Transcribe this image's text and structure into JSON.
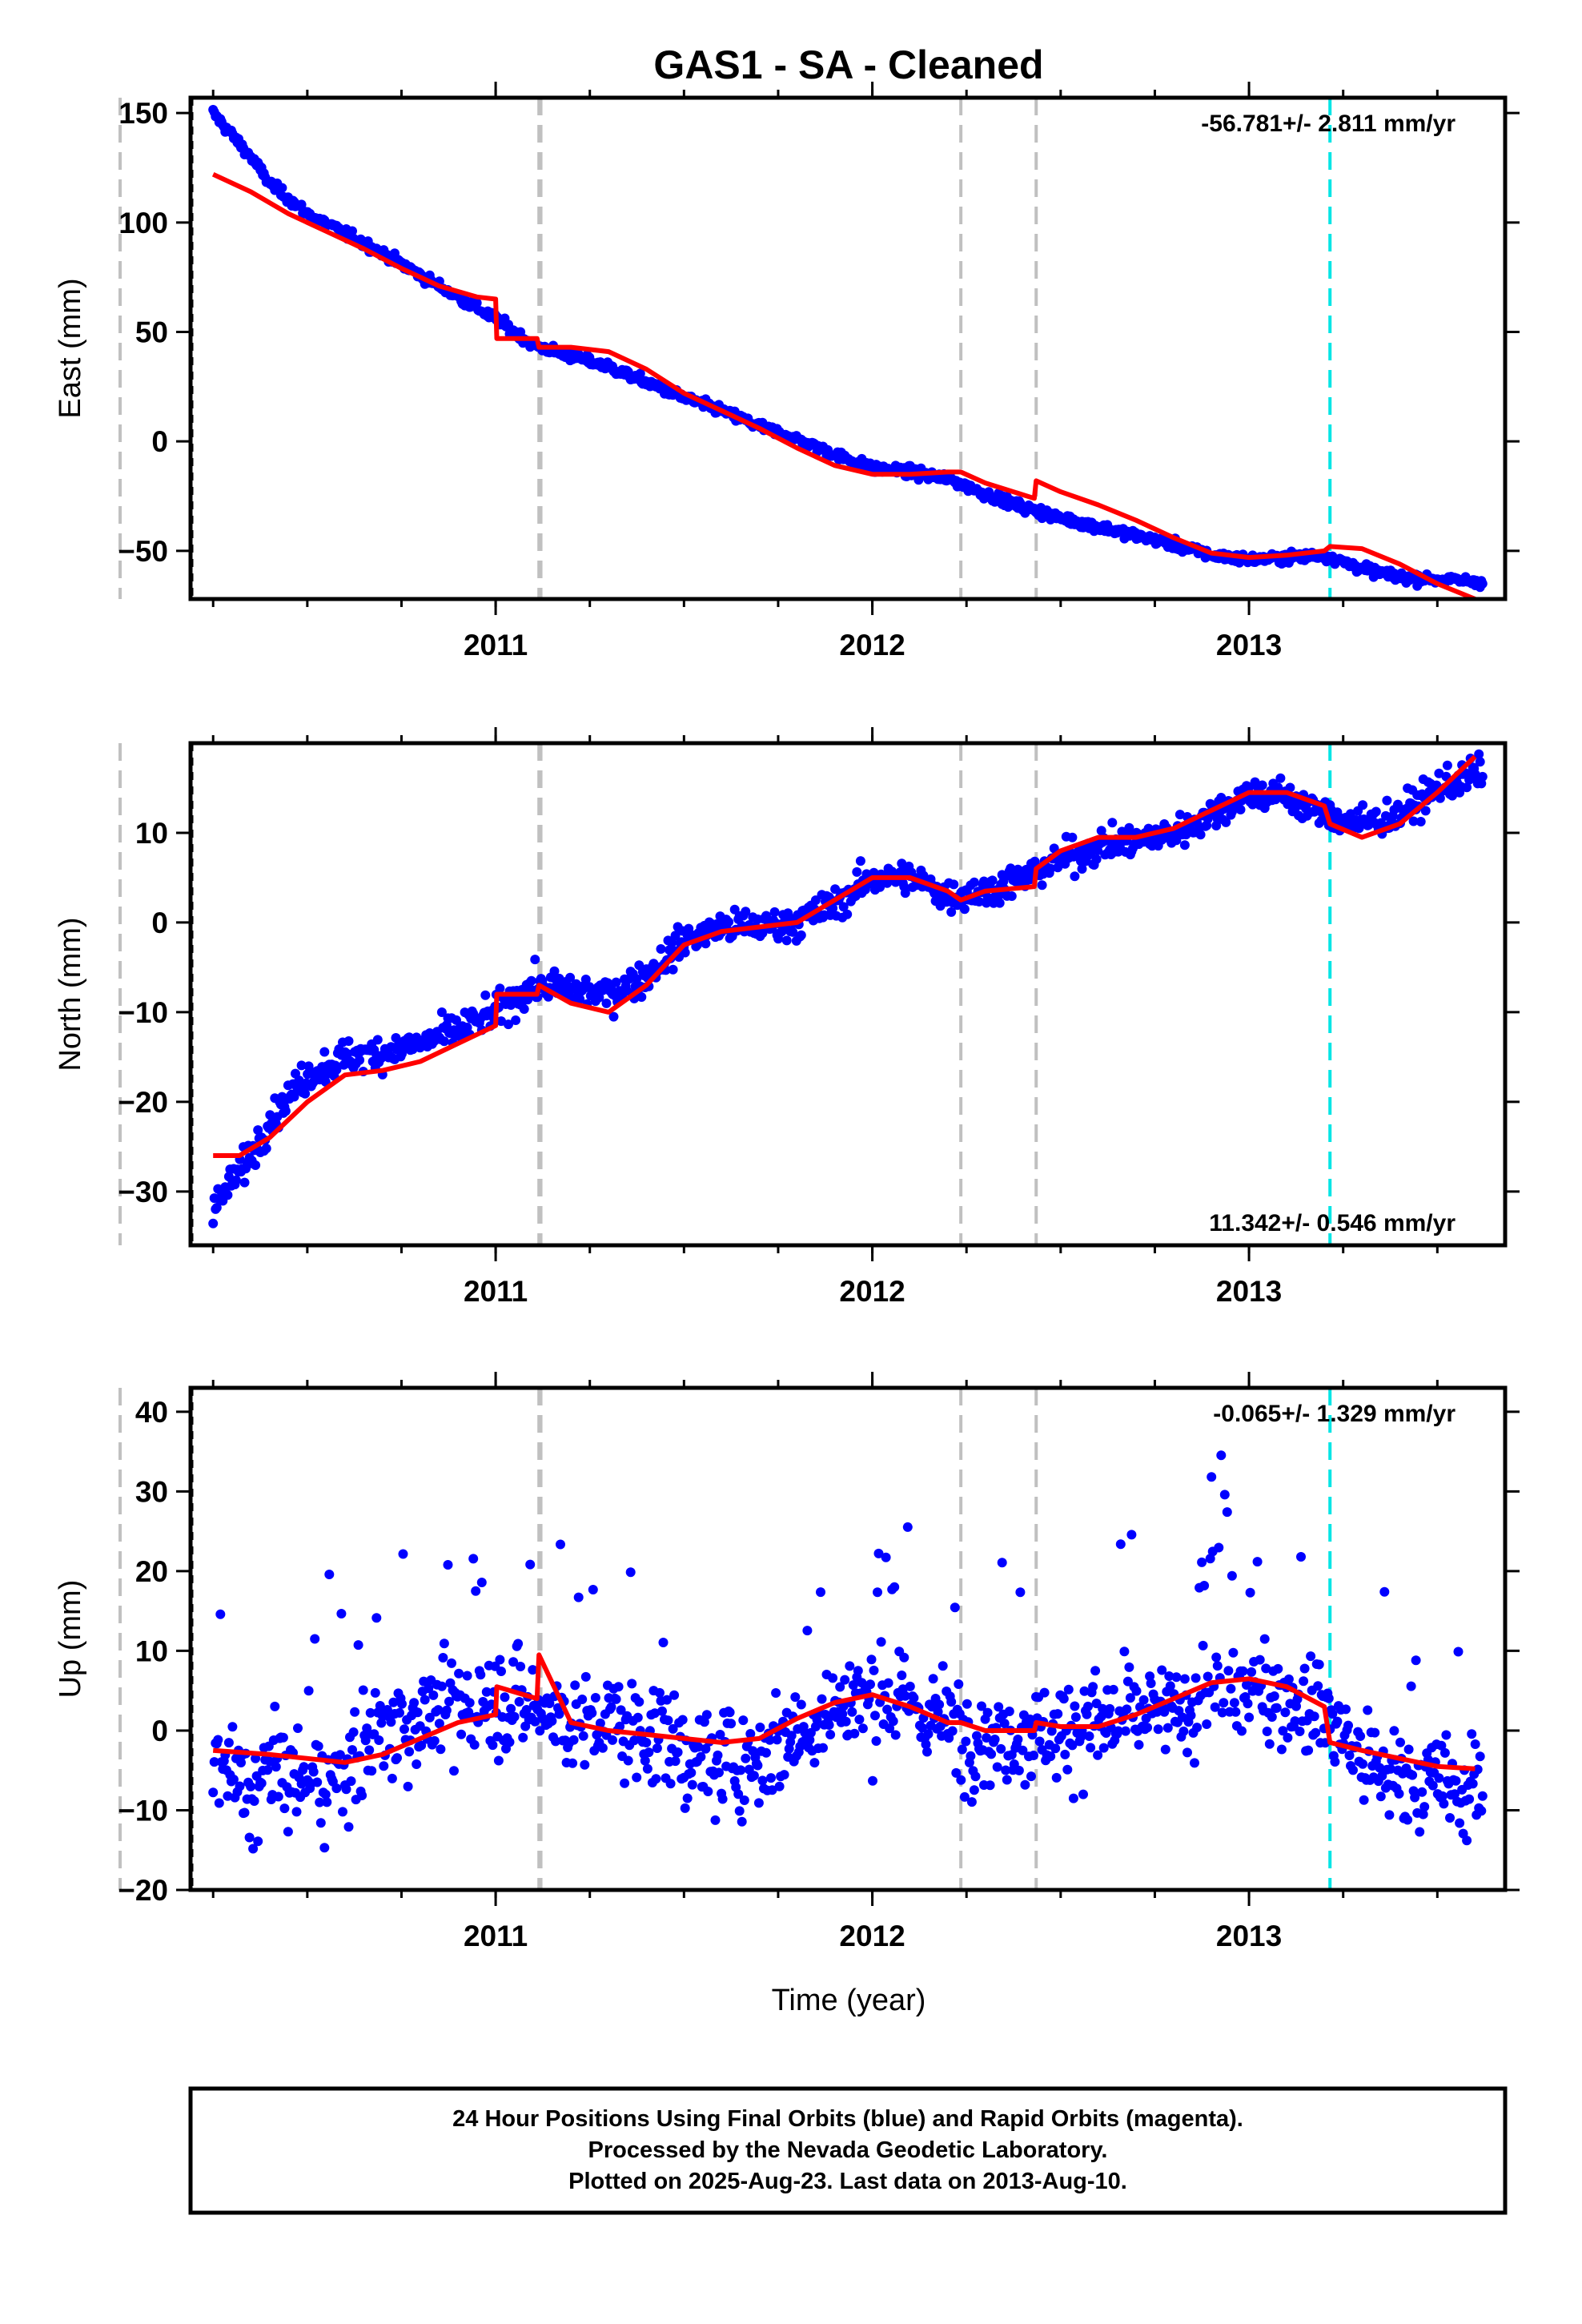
{
  "title": "GAS1  - SA - Cleaned",
  "xlabel": "Time (year)",
  "footer": [
    "24 Hour Positions Using Final Orbits (blue) and Rapid Orbits (magenta).",
    "Processed by the Nevada Geodetic Laboratory.",
    "Plotted on 2025-Aug-23. Last data on 2013-Aug-10."
  ],
  "colors": {
    "points": "#0000ff",
    "model": "#ff0000",
    "steps": "#c0c0c0",
    "step_special": "#00e5e5"
  },
  "step_epochs": [
    2010.003,
    2011.115,
    2012.235,
    2012.435
  ],
  "special_step_epoch": 2013.215,
  "chart_data": [
    {
      "type": "scatter",
      "ylabel": "East (mm)",
      "rate": "-56.781+/- 2.811 mm/yr",
      "xlim": [
        2010.19,
        2013.68
      ],
      "ylim": [
        -72,
        157
      ],
      "xticks": [
        2011,
        2012,
        2013
      ],
      "yticks": [
        150,
        100,
        50,
        0,
        -50
      ],
      "series": [
        {
          "x": [
            2010.25,
            2010.3,
            2010.35,
            2010.4,
            2010.5,
            2010.6,
            2010.7,
            2010.8,
            2010.9,
            2011.0,
            2011.05,
            2011.1,
            2011.2,
            2011.3,
            2011.4,
            2011.5,
            2011.6,
            2011.7,
            2011.8,
            2011.9,
            2012.0,
            2012.1,
            2012.2,
            2012.3,
            2012.4,
            2012.5,
            2012.6,
            2012.7,
            2012.8,
            2012.9,
            2013.0,
            2013.1,
            2013.2,
            2013.3,
            2013.4,
            2013.5,
            2013.6
          ],
          "y": [
            150,
            140,
            130,
            118,
            104,
            95,
            86,
            76,
            66,
            56,
            50,
            44,
            39,
            34,
            27,
            20,
            14,
            7,
            1,
            -6,
            -12,
            -14,
            -17,
            -24,
            -30,
            -35,
            -39,
            -43,
            -47,
            -52,
            -54,
            -53,
            -52,
            -58,
            -62,
            -63,
            -64
          ]
        },
        {
          "x": [
            2010.25,
            2010.35,
            2010.45,
            2010.55,
            2010.65,
            2010.75,
            2010.85,
            2010.95,
            2011.0,
            2011.003,
            2011.11,
            2011.115,
            2011.2,
            2011.3,
            2011.4,
            2011.5,
            2011.6,
            2011.7,
            2011.8,
            2011.9,
            2012.0,
            2012.1,
            2012.2,
            2012.235,
            2012.3,
            2012.43,
            2012.435,
            2012.5,
            2012.6,
            2012.7,
            2012.8,
            2012.9,
            2013.0,
            2013.1,
            2013.2,
            2013.215,
            2013.3,
            2013.4,
            2013.5,
            2013.6
          ],
          "y": [
            122,
            114,
            104,
            96,
            88,
            79,
            71,
            66,
            65,
            47,
            47,
            43,
            43,
            41,
            33,
            22,
            14,
            6,
            -3,
            -11,
            -15,
            -15,
            -14,
            -14,
            -19,
            -26,
            -18,
            -23,
            -29,
            -36,
            -44,
            -51,
            -53,
            -52,
            -50,
            -48,
            -49,
            -56,
            -65,
            -72
          ]
        }
      ]
    },
    {
      "type": "scatter",
      "ylabel": "North (mm)",
      "rate": "11.342+/- 0.546 mm/yr",
      "xlim": [
        2010.19,
        2013.68
      ],
      "ylim": [
        -36,
        20
      ],
      "xticks": [
        2011,
        2012,
        2013
      ],
      "yticks": [
        10,
        0,
        -10,
        -20,
        -30
      ],
      "series": [
        {
          "x": [
            2010.25,
            2010.3,
            2010.35,
            2010.4,
            2010.5,
            2010.6,
            2010.7,
            2010.8,
            2010.9,
            2011.0,
            2011.1,
            2011.2,
            2011.3,
            2011.4,
            2011.5,
            2011.6,
            2011.7,
            2011.8,
            2011.9,
            2012.0,
            2012.1,
            2012.2,
            2012.3,
            2012.4,
            2012.5,
            2012.6,
            2012.7,
            2012.8,
            2012.9,
            2013.0,
            2013.1,
            2013.2,
            2013.3,
            2013.4,
            2013.5,
            2013.6
          ],
          "y": [
            -32,
            -29,
            -26,
            -22,
            -17,
            -15,
            -14.5,
            -13.5,
            -12,
            -10,
            -7,
            -7.5,
            -8,
            -6,
            -2,
            -0.5,
            -0.5,
            0,
            2,
            5,
            5,
            3,
            3.5,
            5,
            7,
            8.5,
            9,
            10,
            12,
            14.5,
            14,
            12,
            11,
            12,
            15,
            16.5
          ]
        },
        {
          "x": [
            2010.25,
            2010.32,
            2010.4,
            2010.5,
            2010.6,
            2010.7,
            2010.8,
            2010.9,
            2011.0,
            2011.003,
            2011.11,
            2011.115,
            2011.2,
            2011.3,
            2011.4,
            2011.5,
            2011.6,
            2011.7,
            2011.8,
            2011.9,
            2012.0,
            2012.1,
            2012.2,
            2012.235,
            2012.3,
            2012.43,
            2012.435,
            2012.5,
            2012.6,
            2012.7,
            2012.8,
            2012.9,
            2013.0,
            2013.1,
            2013.2,
            2013.215,
            2013.3,
            2013.4,
            2013.5,
            2013.6
          ],
          "y": [
            -26,
            -26,
            -24,
            -20,
            -17,
            -16.5,
            -15.5,
            -13.5,
            -11.5,
            -8,
            -8,
            -7,
            -9,
            -10,
            -7,
            -2.5,
            -1,
            -0.5,
            0,
            2.5,
            5,
            5,
            3.5,
            2.5,
            3.5,
            4,
            6,
            8,
            9.5,
            9.5,
            10.5,
            12.5,
            14.5,
            14.5,
            13,
            11,
            9.5,
            11,
            14.5,
            18.5
          ]
        }
      ]
    },
    {
      "type": "scatter",
      "ylabel": "Up (mm)",
      "rate": "-0.065+/- 1.329 mm/yr",
      "xlim": [
        2010.19,
        2013.68
      ],
      "ylim": [
        -20,
        43
      ],
      "xticks": [
        2011,
        2012,
        2013
      ],
      "yticks": [
        40,
        30,
        20,
        10,
        0,
        -10,
        -20
      ],
      "series": [
        {
          "x": [
            2010.25,
            2010.3,
            2010.35,
            2010.4,
            2010.5,
            2010.6,
            2010.7,
            2010.8,
            2010.9,
            2011.0,
            2011.1,
            2011.2,
            2011.3,
            2011.4,
            2011.5,
            2011.6,
            2011.7,
            2011.8,
            2011.9,
            2012.0,
            2012.1,
            2012.2,
            2012.3,
            2012.4,
            2012.5,
            2012.6,
            2012.7,
            2012.8,
            2012.9,
            2013.0,
            2013.1,
            2013.2,
            2013.3,
            2013.4,
            2013.5,
            2013.6
          ],
          "y": [
            -4,
            -6,
            -8,
            -5,
            -7,
            -5,
            0,
            2,
            3,
            4,
            3,
            1,
            1,
            0,
            -3,
            -4,
            -3,
            0,
            3,
            4,
            3,
            1,
            -1,
            0,
            0,
            1,
            2,
            2,
            4,
            5,
            4,
            3,
            -4,
            -6,
            -7,
            -7
          ]
        },
        {
          "x": [
            2010.25,
            2010.4,
            2010.6,
            2010.7,
            2010.8,
            2010.9,
            2011.0,
            2011.003,
            2011.11,
            2011.115,
            2011.2,
            2011.3,
            2011.4,
            2011.5,
            2011.6,
            2011.7,
            2011.8,
            2011.9,
            2012.0,
            2012.1,
            2012.2,
            2012.235,
            2012.3,
            2012.43,
            2012.435,
            2012.5,
            2012.6,
            2012.7,
            2012.8,
            2012.9,
            2013.0,
            2013.1,
            2013.2,
            2013.215,
            2013.3,
            2013.4,
            2013.5,
            2013.6
          ],
          "y": [
            -2.5,
            -3,
            -4,
            -3,
            -1,
            1,
            2,
            5.5,
            4,
            9.5,
            1,
            0,
            -0.5,
            -1,
            -1.5,
            -1,
            1.5,
            3.5,
            4.5,
            3,
            1,
            1,
            0,
            0,
            1,
            0.5,
            0.5,
            2,
            4,
            6,
            6.5,
            5.5,
            3,
            -1.5,
            -2.5,
            -3.5,
            -4.5,
            -4.8
          ]
        }
      ]
    }
  ]
}
